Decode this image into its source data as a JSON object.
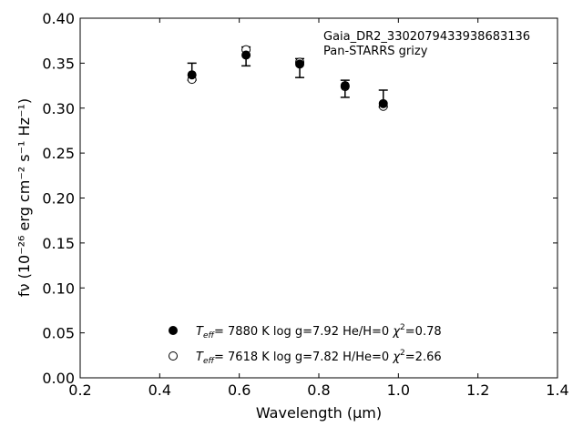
{
  "chart_data": {
    "type": "scatter",
    "xlabel": "Wavelength (μm)",
    "ylabel": "fν (10⁻²⁶ erg cm⁻² s⁻¹ Hz⁻¹)",
    "xlim": [
      0.2,
      1.4
    ],
    "ylim": [
      0.0,
      0.4
    ],
    "xticks": [
      "0.2",
      "0.4",
      "0.6",
      "0.8",
      "1.0",
      "1.2",
      "1.4"
    ],
    "yticks": [
      "0.00",
      "0.05",
      "0.10",
      "0.15",
      "0.20",
      "0.25",
      "0.30",
      "0.35",
      "0.40"
    ],
    "grid": false,
    "annotations": [
      "Gaia_DR2_3302079433938683136",
      "Pan-STARRS grizy"
    ],
    "observed": {
      "x": [
        0.481,
        0.617,
        0.752,
        0.866,
        0.962
      ],
      "y": [
        0.3405,
        0.3575,
        0.3445,
        0.3215,
        0.3105
      ],
      "err": [
        0.0095,
        0.0105,
        0.0105,
        0.0095,
        0.0095
      ]
    },
    "series": [
      {
        "name": "T_eff= 7880 K log g=7.92 He/H=0 χ²=0.78",
        "marker": "filled-circle",
        "x": [
          0.481,
          0.617,
          0.752,
          0.866,
          0.962
        ],
        "y": [
          0.337,
          0.359,
          0.349,
          0.325,
          0.305
        ]
      },
      {
        "name": "T_eff= 7618 K log g=7.82 H/He=0 χ²=2.66",
        "marker": "open-circle",
        "x": [
          0.481,
          0.617,
          0.752,
          0.866,
          0.962
        ],
        "y": [
          0.332,
          0.365,
          0.351,
          0.324,
          0.302
        ]
      }
    ],
    "legend_position": "lower-center",
    "legend": [
      {
        "teff": "7880 K",
        "logg": "log g=7.92",
        "comp": "He/H=0",
        "chi": "=0.78"
      },
      {
        "teff": "7618 K",
        "logg": "log g=7.82",
        "comp": "H/He=0",
        "chi": "=2.66"
      }
    ],
    "colors": {
      "marker": "#000000",
      "axes": "#000000"
    }
  }
}
